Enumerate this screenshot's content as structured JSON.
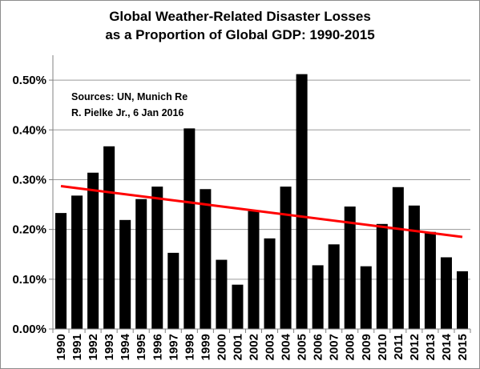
{
  "chart_data": {
    "type": "bar",
    "title_line1": "Global Weather-Related Disaster Losses",
    "title_line2": "as a Proportion of Global GDP: 1990-2015",
    "categories": [
      "1990",
      "1991",
      "1992",
      "1993",
      "1994",
      "1995",
      "1996",
      "1997",
      "1998",
      "1999",
      "2000",
      "2001",
      "2002",
      "2003",
      "2004",
      "2005",
      "2006",
      "2007",
      "2008",
      "2009",
      "2010",
      "2011",
      "2012",
      "2013",
      "2014",
      "2015"
    ],
    "values": [
      0.233,
      0.268,
      0.314,
      0.367,
      0.219,
      0.261,
      0.286,
      0.153,
      0.403,
      0.281,
      0.139,
      0.089,
      0.237,
      0.182,
      0.286,
      0.512,
      0.128,
      0.17,
      0.246,
      0.126,
      0.211,
      0.285,
      0.248,
      0.195,
      0.144,
      0.116
    ],
    "bar_color": "#000000",
    "y_ticks": [
      "0.00%",
      "0.10%",
      "0.20%",
      "0.30%",
      "0.40%",
      "0.50%"
    ],
    "y_tick_values": [
      0,
      0.1,
      0.2,
      0.3,
      0.4,
      0.5
    ],
    "ylim": [
      0,
      0.55
    ],
    "grid": "horizontal",
    "trendline": {
      "color": "#ff0000",
      "start": 0.287,
      "end": 0.185
    },
    "annotation": {
      "line1": "Sources: UN, Munich Re",
      "line2": "R. Pielke Jr., 6 Jan 2016"
    }
  }
}
